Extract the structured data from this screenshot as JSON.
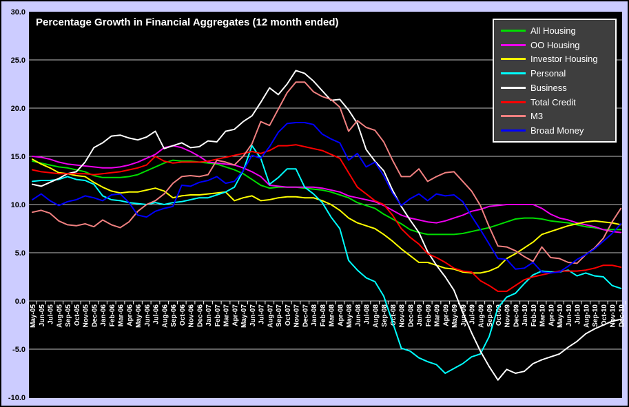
{
  "page": {
    "title": "Percentage Growth in Financial Aggregates (12 month ended)"
  },
  "colors": {
    "background": "#ccccff",
    "plot_bg": "#000000",
    "gridline": "#c0c0c0",
    "axis_text": "#000000",
    "x_label_text": "#ffffff",
    "tick": "#ffffff",
    "legend_bg": "#3e3e3e",
    "legend_border": "#ffffff",
    "legend_text": "#ffffff"
  },
  "chart_data": {
    "type": "line",
    "title": "Percentage Growth in Financial Aggregates (12 month ended)",
    "xlabel": "",
    "ylabel": "",
    "ylim": [
      -10,
      30
    ],
    "grid": true,
    "legend_position": "top-right",
    "y_tick_labels": [
      "30.0",
      "25.0",
      "20.0",
      "15.0",
      "10.0",
      "5.0",
      "0.0",
      "-5.0",
      "-10.0"
    ],
    "x_labels": [
      "May-05",
      "Jun-05",
      "Jul-05",
      "Aug-05",
      "Sep-05",
      "Oct-05",
      "Nov-05",
      "Dec-05",
      "Jan-06",
      "Feb-06",
      "Mar-06",
      "Apr-06",
      "May-06",
      "Jun-06",
      "Jul-06",
      "Aug-06",
      "Sep-06",
      "Oct-06",
      "Nov-06",
      "Dec-06",
      "Jan-07",
      "Feb-07",
      "Mar-07",
      "Apr-07",
      "May-07",
      "Jun-07",
      "Jul-07",
      "Aug-07",
      "Sep-07",
      "Oct-07",
      "Nov-07",
      "Dec-07",
      "Jan-08",
      "Feb-08",
      "Mar-08",
      "Apr-08",
      "May-08",
      "Jun-08",
      "Jul-08",
      "Aug-08",
      "Sep-08",
      "Oct-08",
      "Nov-08",
      "Dec-08",
      "Jan-09",
      "Feb-09",
      "Mar-09",
      "Apr-09",
      "May-09",
      "Jun-09",
      "Jul-09",
      "Aug-09",
      "Sep-09",
      "Oct-09",
      "Nov-09",
      "Dec-09",
      "Jan-10",
      "Feb-10",
      "Mar-10",
      "Apr-10",
      "May-10",
      "Jun-10",
      "Jul-10",
      "Aug-10",
      "Sep-10",
      "Oct-10",
      "Nov-10",
      "Dec-10"
    ],
    "series": [
      {
        "name": "All Housing",
        "color": "#00dd00",
        "values": [
          14.5,
          14.3,
          14.1,
          13.9,
          13.8,
          13.6,
          13.4,
          13.0,
          12.8,
          12.8,
          12.8,
          12.9,
          13.1,
          13.5,
          13.9,
          14.3,
          14.6,
          14.5,
          14.5,
          14.4,
          14.3,
          14.2,
          13.9,
          13.6,
          13.2,
          12.6,
          12.0,
          11.7,
          11.8,
          11.8,
          11.8,
          11.7,
          11.6,
          11.5,
          11.3,
          11.0,
          10.7,
          10.2,
          9.9,
          9.6,
          9.0,
          8.5,
          8.0,
          7.4,
          7.1,
          6.9,
          6.9,
          6.9,
          6.9,
          7.0,
          7.2,
          7.4,
          7.6,
          7.9,
          8.2,
          8.5,
          8.6,
          8.6,
          8.5,
          8.3,
          8.2,
          8.1,
          7.9,
          7.7,
          7.6,
          7.4,
          7.4,
          7.4
        ]
      },
      {
        "name": "OO Housing",
        "color": "#ee00ee",
        "values": [
          15.0,
          14.9,
          14.7,
          14.4,
          14.2,
          14.1,
          14.0,
          13.9,
          13.8,
          13.8,
          13.9,
          14.1,
          14.4,
          14.8,
          15.2,
          15.9,
          16.1,
          15.9,
          15.5,
          15.0,
          14.4,
          14.3,
          14.2,
          14.1,
          13.8,
          13.4,
          12.9,
          12.0,
          11.9,
          11.8,
          11.8,
          11.8,
          11.8,
          11.7,
          11.5,
          11.3,
          10.9,
          10.7,
          10.5,
          10.3,
          9.9,
          9.4,
          8.9,
          8.6,
          8.4,
          8.2,
          8.1,
          8.3,
          8.6,
          8.9,
          9.3,
          9.5,
          9.8,
          9.9,
          10.0,
          10.0,
          10.0,
          10.0,
          9.6,
          9.0,
          8.6,
          8.4,
          8.1,
          7.9,
          7.7,
          7.4,
          7.2,
          7.1
        ]
      },
      {
        "name": "Investor Housing",
        "color": "#ffff00",
        "values": [
          14.7,
          14.2,
          13.8,
          13.3,
          13.2,
          13.0,
          12.9,
          12.3,
          11.8,
          11.4,
          11.2,
          11.3,
          11.3,
          11.5,
          11.7,
          11.4,
          10.7,
          10.9,
          11.0,
          11.0,
          11.1,
          11.2,
          11.3,
          10.4,
          10.7,
          10.9,
          10.4,
          10.5,
          10.7,
          10.8,
          10.8,
          10.7,
          10.7,
          10.4,
          10.0,
          9.4,
          8.6,
          8.1,
          7.8,
          7.5,
          6.9,
          6.2,
          5.4,
          4.7,
          4.0,
          4.0,
          3.7,
          3.4,
          3.3,
          3.0,
          2.9,
          2.9,
          3.1,
          3.5,
          4.4,
          4.9,
          5.5,
          6.1,
          6.9,
          7.2,
          7.5,
          7.8,
          8.0,
          8.2,
          8.3,
          8.2,
          8.1,
          7.9
        ]
      },
      {
        "name": "Personal",
        "color": "#00ffff",
        "values": [
          12.4,
          12.5,
          12.5,
          12.6,
          12.9,
          12.6,
          12.5,
          12.1,
          10.9,
          10.5,
          10.4,
          10.2,
          10.1,
          10.0,
          10.2,
          10.0,
          10.2,
          10.3,
          10.5,
          10.7,
          10.7,
          11.0,
          11.3,
          11.8,
          13.5,
          16.1,
          14.8,
          12.1,
          12.8,
          13.7,
          13.7,
          11.8,
          11.1,
          10.2,
          8.7,
          7.5,
          4.2,
          3.2,
          2.4,
          2.0,
          0.5,
          -2.2,
          -4.9,
          -5.2,
          -5.9,
          -6.3,
          -6.6,
          -7.5,
          -7.0,
          -6.5,
          -5.8,
          -5.5,
          -3.7,
          -0.7,
          0.4,
          0.8,
          1.8,
          2.7,
          3.1,
          3.0,
          3.0,
          3.2,
          2.6,
          2.9,
          2.6,
          2.5,
          1.6,
          1.3
        ]
      },
      {
        "name": "Business",
        "color": "#ffffff",
        "values": [
          12.1,
          11.9,
          12.3,
          12.7,
          13.2,
          13.4,
          14.4,
          15.9,
          16.4,
          17.1,
          17.2,
          16.9,
          16.7,
          17.0,
          17.6,
          15.8,
          16.1,
          16.4,
          15.9,
          16.0,
          16.6,
          16.5,
          17.6,
          17.8,
          18.6,
          19.2,
          20.6,
          22.1,
          21.4,
          22.5,
          23.9,
          23.6,
          22.8,
          21.8,
          20.8,
          20.9,
          19.8,
          18.4,
          15.7,
          14.5,
          13.5,
          11.5,
          9.8,
          8.4,
          7.1,
          5.1,
          3.7,
          2.5,
          1.1,
          -1.2,
          -3.3,
          -5.2,
          -6.8,
          -8.2,
          -7.1,
          -7.5,
          -7.3,
          -6.5,
          -6.1,
          -5.8,
          -5.5,
          -4.8,
          -4.2,
          -3.4,
          -2.9,
          -2.5,
          -2.1,
          -1.9
        ]
      },
      {
        "name": "Total Credit",
        "color": "#ff0000",
        "values": [
          13.6,
          13.4,
          13.3,
          13.2,
          13.2,
          13.2,
          13.2,
          13.1,
          13.2,
          13.3,
          13.4,
          13.6,
          13.8,
          14.1,
          15.0,
          14.5,
          14.3,
          14.4,
          14.4,
          14.4,
          14.5,
          14.7,
          14.9,
          15.1,
          15.3,
          15.5,
          15.3,
          15.6,
          16.1,
          16.1,
          16.2,
          16.0,
          15.8,
          15.6,
          15.2,
          14.8,
          13.3,
          11.8,
          11.1,
          10.4,
          10.0,
          8.9,
          7.5,
          6.6,
          5.9,
          4.9,
          4.5,
          4.0,
          3.4,
          3.1,
          3.0,
          2.1,
          1.6,
          1.0,
          1.0,
          1.6,
          2.2,
          2.5,
          2.7,
          2.9,
          3.1,
          3.1,
          3.1,
          3.2,
          3.4,
          3.7,
          3.7,
          3.5
        ]
      },
      {
        "name": "M3",
        "color": "#f08080",
        "values": [
          9.2,
          9.4,
          9.1,
          8.3,
          7.9,
          7.8,
          8.0,
          7.7,
          8.4,
          7.9,
          7.6,
          8.2,
          9.3,
          10.0,
          10.4,
          11.1,
          12.2,
          12.9,
          13.0,
          12.9,
          13.1,
          14.6,
          14.4,
          14.1,
          15.0,
          16.3,
          18.6,
          18.2,
          19.9,
          21.6,
          22.7,
          22.7,
          21.7,
          21.2,
          20.9,
          20.1,
          17.6,
          18.7,
          18.0,
          17.7,
          16.5,
          14.6,
          12.9,
          12.9,
          13.7,
          12.4,
          12.9,
          13.3,
          13.4,
          12.4,
          11.4,
          9.9,
          7.7,
          5.7,
          5.6,
          5.2,
          4.6,
          4.1,
          5.6,
          4.5,
          4.4,
          4.0,
          3.9,
          4.8,
          5.5,
          6.5,
          8.2,
          9.6
        ]
      },
      {
        "name": "Broad Money",
        "color": "#0000ff",
        "values": [
          10.5,
          11.1,
          10.4,
          9.9,
          10.3,
          10.5,
          10.9,
          10.7,
          10.4,
          11.0,
          11.1,
          10.2,
          8.9,
          8.7,
          9.3,
          9.6,
          9.8,
          12.0,
          11.9,
          12.3,
          12.5,
          12.9,
          12.2,
          12.4,
          13.5,
          15.1,
          14.8,
          16.0,
          17.5,
          18.4,
          18.5,
          18.5,
          18.3,
          17.3,
          16.8,
          16.4,
          14.6,
          15.3,
          13.9,
          14.4,
          13.0,
          11.2,
          9.9,
          10.6,
          11.1,
          10.4,
          11.1,
          10.9,
          11.0,
          10.3,
          8.8,
          7.4,
          5.9,
          4.4,
          4.3,
          3.3,
          3.4,
          4.0,
          3.0,
          2.9,
          3.0,
          3.6,
          4.3,
          4.8,
          5.4,
          6.2,
          7.0,
          8.0
        ]
      }
    ]
  }
}
